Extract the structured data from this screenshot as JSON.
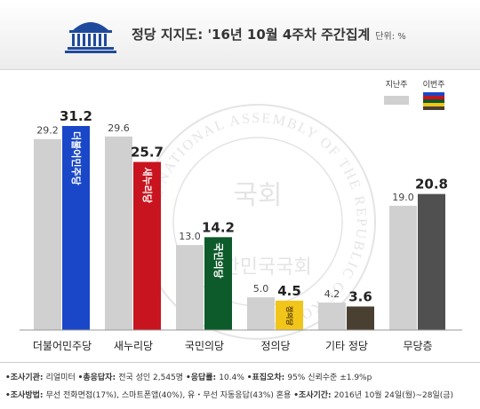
{
  "header": {
    "title": "정당 지지도: '16년 10월 4주차 주간집계",
    "unit": "단위: %"
  },
  "chart_data": {
    "type": "bar",
    "categories": [
      "더불어민주당",
      "새누리당",
      "국민의당",
      "정의당",
      "기타 정당",
      "무당층"
    ],
    "series": [
      {
        "name": "지난주",
        "values": [
          29.2,
          29.6,
          13.0,
          5.0,
          4.2,
          19.0
        ]
      },
      {
        "name": "이번주",
        "values": [
          31.2,
          25.7,
          14.2,
          4.5,
          3.6,
          20.8
        ]
      }
    ],
    "value_labels": {
      "previous": [
        "29.2",
        "29.6",
        "13.0",
        "5.0",
        "4.2",
        "19.0"
      ],
      "current": [
        "31.2",
        "25.7",
        "14.2",
        "4.5",
        "3.6",
        "20.8"
      ]
    },
    "bar_labels": [
      "더불어민주당",
      "새누리당",
      "국민의당",
      "정의당",
      "",
      ""
    ],
    "ylim": [
      0,
      35
    ],
    "legend_position": "top-right",
    "colors": {
      "previous": "#d0d0d0",
      "current": [
        "#1a47c8",
        "#c8141e",
        "#0d5a2a",
        "#f2c51a",
        "#4a4032",
        "#505050"
      ],
      "legend_current": [
        "#1a47c8",
        "#c8141e",
        "#0d5a2a",
        "#f2c51a",
        "#4a4032"
      ]
    }
  },
  "watermark": {
    "ring_text": "THE NATIONAL ASSEMBLY OF THE REPUBLIC OF KOREA",
    "center_text": "국회",
    "bottom_text": "대한민국국회"
  },
  "footer": {
    "line1": [
      {
        "label": "조사기관",
        "value": "리얼미터"
      },
      {
        "label": "총응답자",
        "value": "전국 성인 2,545명"
      },
      {
        "label": "응답률",
        "value": "10.4%"
      },
      {
        "label": "표집오차",
        "value": "95% 신뢰수준 ±1.9%p"
      }
    ],
    "line2": [
      {
        "label": "조사방법",
        "value": "무선 전화면접(17%), 스마트폰앱(40%), 유・무선 자동응답(43%) 혼용"
      },
      {
        "label": "조사기간",
        "value": "2016년 10월 24일(월)~28일(금)"
      }
    ]
  }
}
